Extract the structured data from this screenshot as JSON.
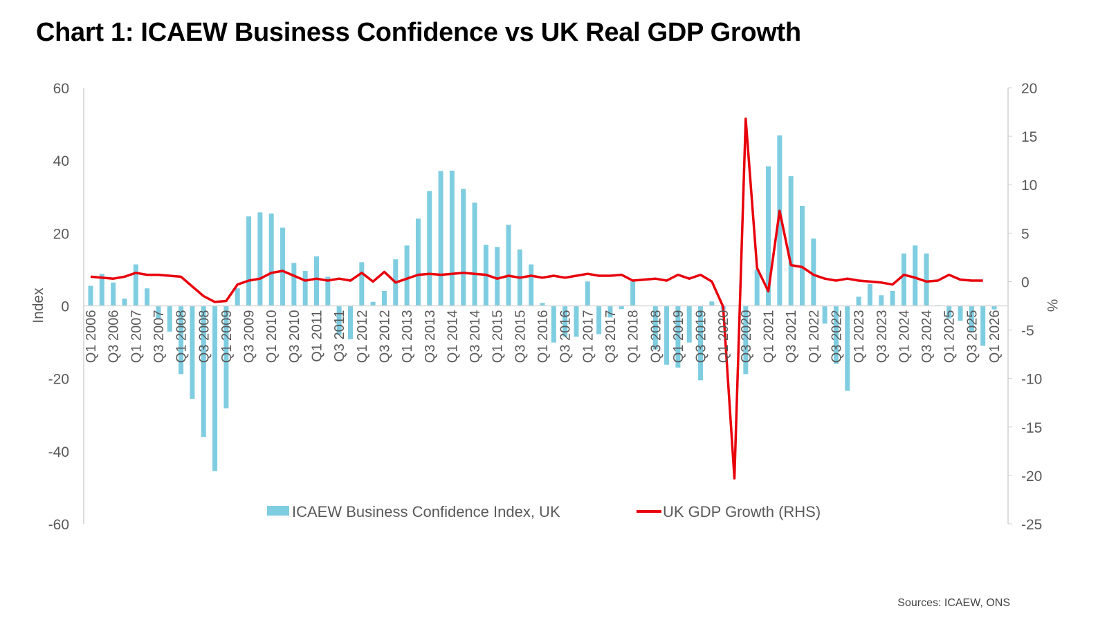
{
  "chart_data": {
    "type": "bar+line",
    "title": "Chart 1: ICAEW Business Confidence vs UK Real GDP Growth",
    "source": "Sources: ICAEW, ONS",
    "left_axis": {
      "label": "Index",
      "ylim": [
        -60,
        60
      ],
      "ticks": [
        60,
        40,
        20,
        0,
        -20,
        -40,
        -60
      ]
    },
    "right_axis": {
      "label": "%",
      "ylim": [
        -25,
        20
      ],
      "ticks": [
        20,
        15,
        10,
        5,
        0,
        -5,
        -10,
        -15,
        -20,
        -25
      ]
    },
    "grid": false,
    "legend_position": "bottom",
    "categories": [
      "Q1 2006",
      "Q2 2006",
      "Q3 2006",
      "Q4 2006",
      "Q1 2007",
      "Q2 2007",
      "Q3 2007",
      "Q4 2007",
      "Q1 2008",
      "Q2 2008",
      "Q3 2008",
      "Q4 2008",
      "Q1 2009",
      "Q2 2009",
      "Q3 2009",
      "Q4 2009",
      "Q1 2010",
      "Q2 2010",
      "Q3 2010",
      "Q4 2010",
      "Q1 2011",
      "Q2 2011",
      "Q3 2011",
      "Q4 2011",
      "Q1 2012",
      "Q2 2012",
      "Q3 2012",
      "Q4 2012",
      "Q1 2013",
      "Q2 2013",
      "Q3 2013",
      "Q4 2013",
      "Q1 2014",
      "Q2 2014",
      "Q3 2014",
      "Q4 2014",
      "Q1 2015",
      "Q2 2015",
      "Q3 2015",
      "Q4 2015",
      "Q1 2016",
      "Q2 2016",
      "Q3 2016",
      "Q4 2016",
      "Q1 2017",
      "Q2 2017",
      "Q3 2017",
      "Q4 2017",
      "Q1 2018",
      "Q2 2018",
      "Q3 2018",
      "Q4 2018",
      "Q1 2019",
      "Q2 2019",
      "Q3 2019",
      "Q4 2019",
      "Q1 2020",
      "Q2 2020",
      "Q3 2020",
      "Q4 2020",
      "Q1 2021",
      "Q2 2021",
      "Q3 2021",
      "Q4 2021",
      "Q1 2022",
      "Q2 2022",
      "Q3 2022",
      "Q4 2022",
      "Q1 2023",
      "Q2 2023",
      "Q3 2023",
      "Q4 2023",
      "Q1 2024",
      "Q2 2024",
      "Q3 2024",
      "Q4 2024",
      "Q1 2025",
      "Q2 2025",
      "Q3 2025",
      "Q4 2025",
      "Q1 2026"
    ],
    "series": [
      {
        "name": "ICAEW Business Confidence Index, UK",
        "type": "bar",
        "axis": "left",
        "color": "#7fcde0",
        "values": [
          5.5,
          8.8,
          6.4,
          2.0,
          11.4,
          4.8,
          -3.5,
          -7.1,
          -18.8,
          -25.6,
          -36.1,
          -45.5,
          -28.2,
          4.8,
          24.6,
          25.7,
          25.4,
          21.5,
          11.8,
          9.6,
          13.6,
          8.0,
          -8.0,
          -9.2,
          12.0,
          1.1,
          4.1,
          12.8,
          16.6,
          24.0,
          31.6,
          37.1,
          37.2,
          32.2,
          28.4,
          16.8,
          16.2,
          22.3,
          15.5,
          11.4,
          0.8,
          -10.1,
          -8.5,
          -8.5,
          6.7,
          -7.8,
          -3.2,
          -0.9,
          6.7,
          0,
          -12.0,
          -16.2,
          -17.0,
          -10.1,
          -20.5,
          1.2,
          -1.0,
          null,
          -18.8,
          10.0,
          38.4,
          46.9,
          35.7,
          27.5,
          18.5,
          -4.9,
          -16.0,
          -23.4,
          2.5,
          6.0,
          2.9,
          4.1,
          14.4,
          16.6,
          14.4,
          0.2,
          -3.5,
          -4.1,
          -7.3,
          -11.0,
          -1.0
        ]
      },
      {
        "name": "UK GDP Growth (RHS)",
        "type": "line",
        "axis": "right",
        "color": "#e8000b",
        "values": [
          0.5,
          0.4,
          0.3,
          0.5,
          0.9,
          0.7,
          0.7,
          0.6,
          0.5,
          -0.5,
          -1.5,
          -2.1,
          -2.0,
          -0.3,
          0.1,
          0.3,
          0.9,
          1.1,
          0.6,
          0.1,
          0.3,
          0.1,
          0.3,
          0.1,
          0.9,
          0.0,
          1.0,
          -0.1,
          0.3,
          0.7,
          0.8,
          0.7,
          0.8,
          0.9,
          0.8,
          0.7,
          0.3,
          0.6,
          0.4,
          0.6,
          0.4,
          0.6,
          0.4,
          0.6,
          0.8,
          0.6,
          0.6,
          0.7,
          0.1,
          0.2,
          0.3,
          0.1,
          0.7,
          0.3,
          0.7,
          0.0,
          -2.6,
          -20.3,
          16.8,
          1.4,
          -1.0,
          7.3,
          1.7,
          1.5,
          0.7,
          0.3,
          0.1,
          0.3,
          0.1,
          0.0,
          -0.1,
          -0.3,
          0.7,
          0.4,
          0.0,
          0.1,
          0.7,
          0.2,
          0.1,
          0.1,
          null
        ]
      }
    ]
  }
}
